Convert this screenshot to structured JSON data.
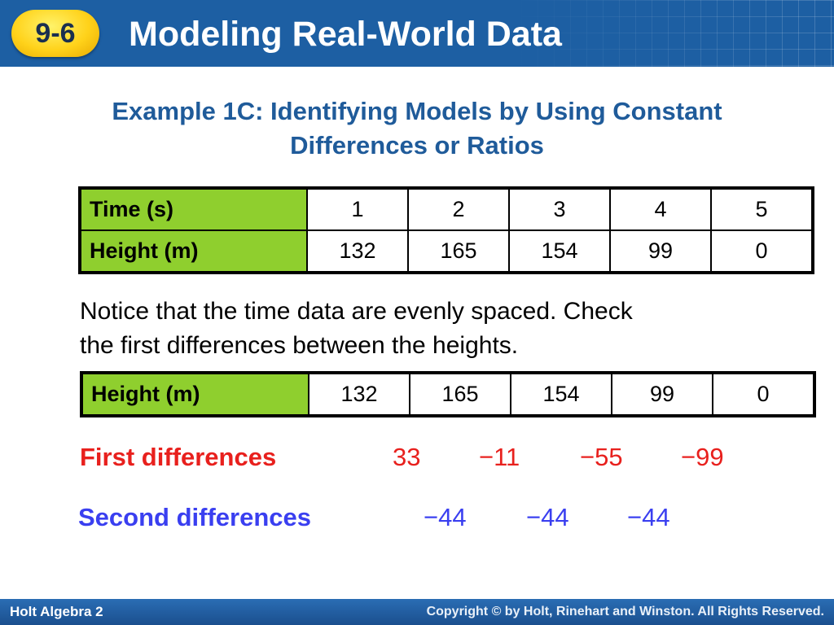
{
  "header": {
    "badge": "9-6",
    "title": "Modeling Real-World Data"
  },
  "example": {
    "title_line1": "Example 1C: Identifying Models by Using Constant",
    "title_line2": "Differences or Ratios"
  },
  "table1": {
    "rows": [
      {
        "label": "Time (s)",
        "values": [
          "1",
          "2",
          "3",
          "4",
          "5"
        ]
      },
      {
        "label": "Height (m)",
        "values": [
          "132",
          "165",
          "154",
          "99",
          "0"
        ]
      }
    ]
  },
  "notice": {
    "line1": "Notice that the time data are evenly spaced. Check",
    "line2": "the first differences between the heights."
  },
  "table2": {
    "label": "Height (m)",
    "values": [
      "132",
      "165",
      "154",
      "99",
      "0"
    ]
  },
  "first_differences": {
    "label": "First differences",
    "values": [
      "33",
      "−11",
      "−55",
      "−99"
    ]
  },
  "second_differences": {
    "label": "Second differences",
    "values": [
      "−44",
      "−44",
      "−44"
    ]
  },
  "footer": {
    "left": "Holt Algebra 2",
    "right": "Copyright © by Holt, Rinehart and Winston. All Rights Reserved."
  },
  "colors": {
    "header_blue": "#1d5fa3",
    "badge_yellow": "#ffd21a",
    "table_head_green": "#8fcf2e",
    "first_diff_red": "#e8201d",
    "second_diff_blue": "#3a3ff0",
    "subtitle_blue": "#1f5b9a"
  }
}
